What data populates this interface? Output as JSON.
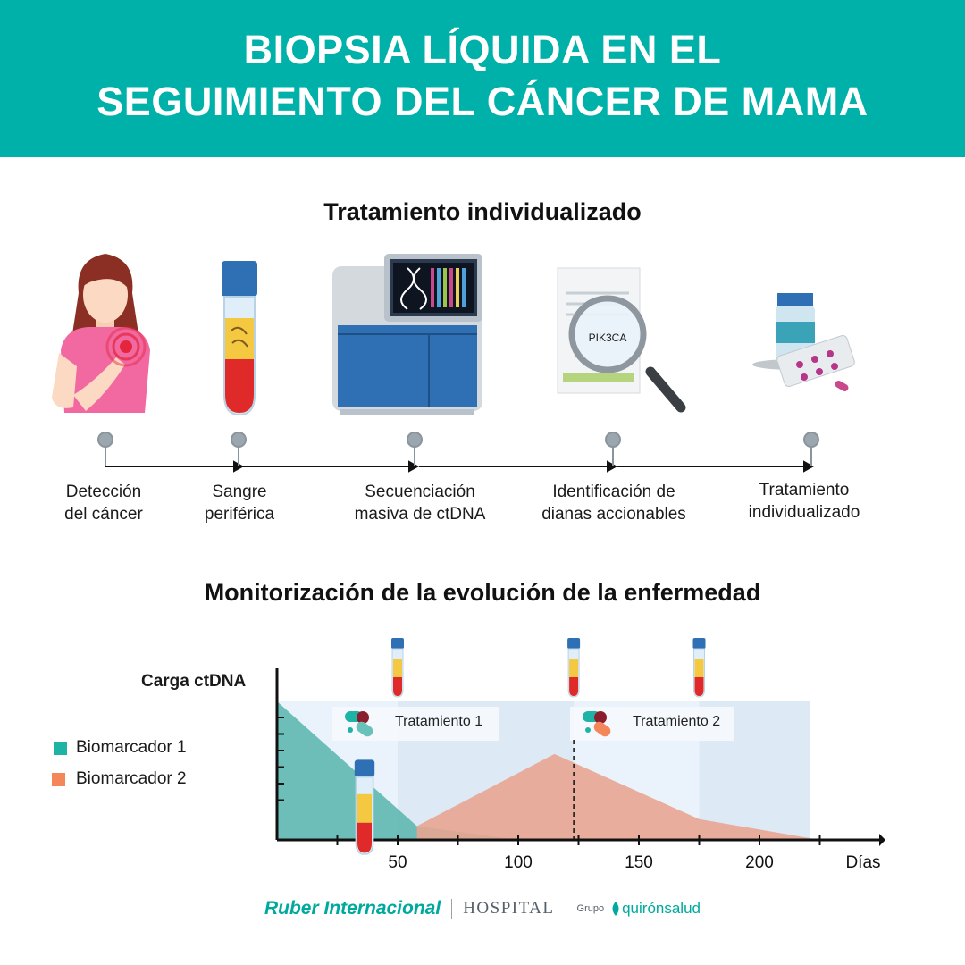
{
  "header": {
    "title_line1": "BIOPSIA LÍQUIDA EN EL",
    "title_line2": "SEGUIMIENTO DEL CÁNCER DE MAMA"
  },
  "section1": {
    "title": "Tratamiento individualizado",
    "steps": [
      {
        "line1": "Detección",
        "line2": "del cáncer"
      },
      {
        "line1": "Sangre",
        "line2": "periférica"
      },
      {
        "line1": "Secuenciación",
        "line2": "masiva de ctDNA"
      },
      {
        "line1": "Identificación de",
        "line2": "dianas accionables"
      },
      {
        "line1": "Tratamiento",
        "line2": "individualizado"
      }
    ],
    "gene_label": "PIK3CA"
  },
  "section2": {
    "title": "Monitorización de la evolución de la enfermedad",
    "ylabel": "Carga ctDNA",
    "legend": [
      {
        "label": "Biomarcador 1",
        "color": "#1fb3a6"
      },
      {
        "label": "Biomarcador 2",
        "color": "#f4875a"
      }
    ],
    "treatments": [
      "Tratamiento 1",
      "Tratamiento 2"
    ]
  },
  "chart_data": {
    "type": "area",
    "xlabel": "Días",
    "x_ticks": [
      50,
      100,
      150,
      200
    ],
    "xlim": [
      0,
      250
    ],
    "series": [
      {
        "name": "Biomarcador 1",
        "color": "#5fb7b0",
        "x": [
          0,
          58,
          100
        ],
        "y": [
          1.0,
          0.1,
          0.0
        ]
      },
      {
        "name": "Biomarcador 2",
        "color": "#e9a592",
        "x": [
          58,
          115,
          175,
          225
        ],
        "y": [
          0.1,
          0.62,
          0.15,
          0.0
        ]
      }
    ],
    "treatment_periods": [
      {
        "label": "Tratamiento 1",
        "start": 0,
        "end": 123
      },
      {
        "label": "Tratamiento 2",
        "start": 123,
        "end": 225
      }
    ],
    "blood_samples_days": [
      50,
      123,
      175
    ]
  },
  "footer": {
    "brand": "Ruber Internacional",
    "hospital": "HOSPITAL",
    "group": "Grupo",
    "group_brand": "quirónsalud"
  },
  "colors": {
    "banner": "#00b1a9",
    "accent": "#00a99d"
  }
}
